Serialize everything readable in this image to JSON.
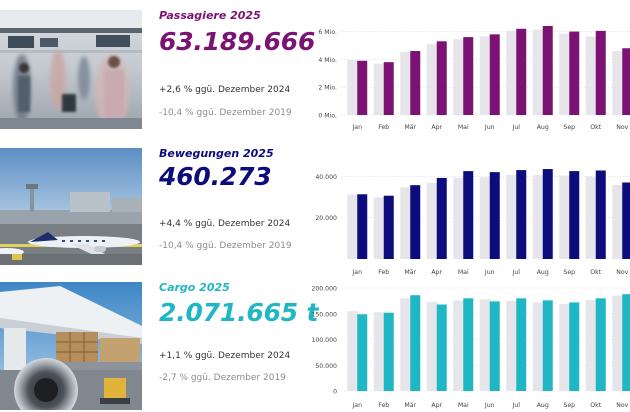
{
  "colors": {
    "passengers": "#7b1374",
    "movements": "#0c0c7d",
    "cargo": "#1fb7c3",
    "previous_year": "#e6e6ea",
    "gridline": "#dadada"
  },
  "sections": [
    {
      "id": "passengers",
      "photo_icon": "airport-terminal-photo",
      "title": "Passagiere 2025",
      "value": "63.189.666",
      "comparison_1": "+2,6 % ggü. Dezember 2024",
      "comparison_2": "-10,4 % ggü. Dezember 2019"
    },
    {
      "id": "movements",
      "photo_icon": "airfield-aircraft-photo",
      "title": "Bewegungen 2025",
      "value": "460.273",
      "comparison_1": "+4,4 % ggü. Dezember 2024",
      "comparison_2": "-10,4 % ggü. Dezember 2019"
    },
    {
      "id": "cargo",
      "photo_icon": "cargo-aircraft-photo",
      "title": "Cargo 2025",
      "value": "2.071.665 t",
      "comparison_1": "+1,1 % ggü. Dezember 2024",
      "comparison_2": "-2,7 % ggü. Dezember 2019"
    }
  ],
  "chart_data": [
    {
      "type": "bar",
      "categories": [
        "Jan",
        "Feb",
        "Mär",
        "Apr",
        "Mai",
        "Jun",
        "Jul",
        "Aug",
        "Sep",
        "Okt",
        "Nov"
      ],
      "y_ticks": [
        "0 Mio.",
        "2 Mio.",
        "4 Mio.",
        "6 Mio."
      ],
      "y_tick_values": [
        0,
        2,
        4,
        6
      ],
      "ylim": [
        0,
        6.4
      ],
      "grid": true,
      "series": [
        {
          "values": [
            3.95,
            3.7,
            4.55,
            5.1,
            5.45,
            5.65,
            6.05,
            6.15,
            5.85,
            5.65,
            4.6
          ]
        },
        {
          "values": [
            3.9,
            3.8,
            4.6,
            5.3,
            5.6,
            5.8,
            6.2,
            6.4,
            6.0,
            6.05,
            4.8
          ]
        }
      ]
    },
    {
      "type": "bar",
      "categories": [
        "Jan",
        "Feb",
        "Mär",
        "Apr",
        "Mai",
        "Jun",
        "Jul",
        "Aug",
        "Sep",
        "Okt",
        "Nov"
      ],
      "y_ticks": [
        "20.000",
        "40.000"
      ],
      "y_tick_values": [
        20000,
        40000
      ],
      "ylim": [
        0,
        44000
      ],
      "grid": true,
      "series": [
        {
          "values": [
            31200,
            29800,
            34600,
            36800,
            39300,
            39500,
            40700,
            40600,
            40300,
            39800,
            35800
          ]
        },
        {
          "values": [
            31300,
            30600,
            35700,
            39200,
            42500,
            42000,
            43000,
            43500,
            42500,
            42800,
            37000
          ]
        }
      ]
    },
    {
      "type": "bar",
      "categories": [
        "Jan",
        "Feb",
        "Mär",
        "Apr",
        "Mai",
        "Jun",
        "Jul",
        "Aug",
        "Sep",
        "Okt",
        "Nov"
      ],
      "y_ticks": [
        "0",
        "50.000",
        "100.000",
        "150.000",
        "200.000"
      ],
      "y_tick_values": [
        0,
        50000,
        100000,
        150000,
        200000
      ],
      "ylim": [
        0,
        200000
      ],
      "grid": true,
      "series": [
        {
          "values": [
            155000,
            153000,
            180000,
            173000,
            176000,
            178000,
            175000,
            172000,
            169000,
            177000,
            185000
          ]
        },
        {
          "values": [
            149000,
            152000,
            186000,
            168000,
            180000,
            174000,
            180000,
            176000,
            172000,
            180000,
            188000
          ]
        }
      ]
    }
  ]
}
